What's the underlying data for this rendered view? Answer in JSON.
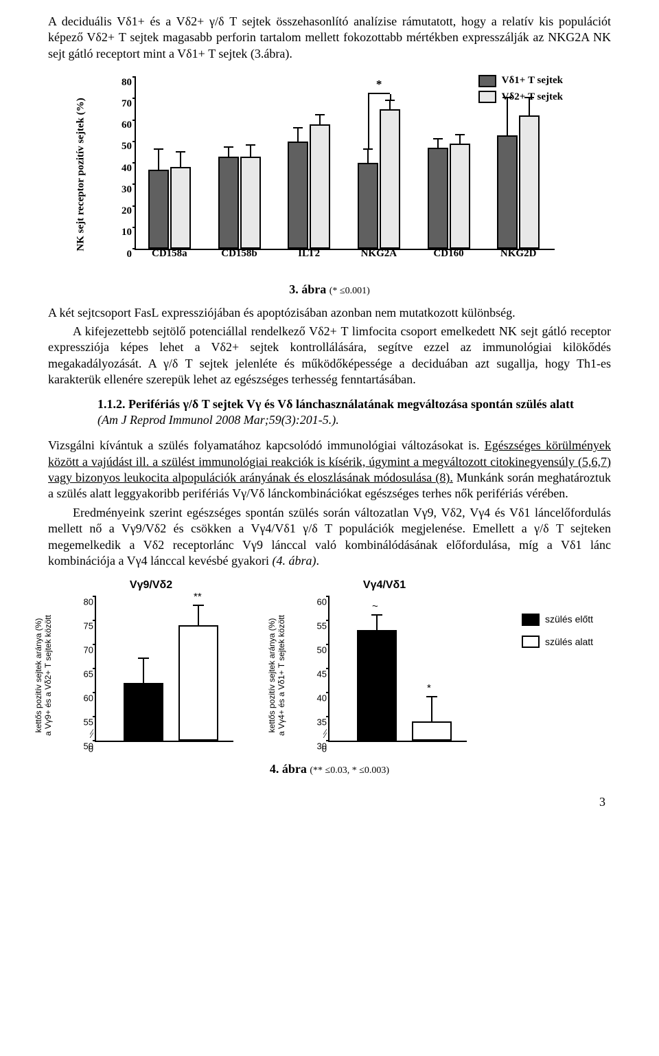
{
  "paragraphs": {
    "p1": "A deciduális Vδ1+ és a Vδ2+ γ/δ T sejtek összehasonlító analízise rámutatott, hogy a relatív kis populációt képező Vδ2+ T sejtek magasabb perforin tartalom mellett fokozottabb mértékben expresszálják az NKG2A NK sejt gátló receptort mint a Vδ1+ T sejtek (3.ábra).",
    "p2a": "A két sejtcsoport FasL expressziójában és apoptózisában azonban nem mutatkozott különbség.",
    "p2b": "A kifejezettebb sejtölő potenciállal rendelkező Vδ2+ T limfocita csoport emelkedett NK sejt gátló receptor expressziója képes lehet a Vδ2+ sejtek kontrollálására, segítve ezzel az immunológiai kilökődés megakadályozását. A γ/δ T sejtek jelenléte és működőképessége a deciduában azt sugallja, hogy Th1-es karakterük ellenére szerepük lehet az egészséges terhesség fenntartásában.",
    "p3": "Vizsgálni kívántuk a szülés folyamatához kapcsolódó immunológiai változásokat is. Egészséges körülmények között a vajúdást ill. a szülést immunológiai reakciók is kísérik, úgymint a megváltozott citokinegyensúly (5,6,7) vagy bizonyos leukocita alpopulációk arányának és eloszlásának módosulása (8). Munkánk során meghatároztuk a szülés alatt leggyakoribb perifériás Vγ/Vδ lánckombinációkat egészséges terhes nők perifériás vérében.",
    "p4": "Eredményeink szerint egészséges spontán szülés során változatlan Vγ9, Vδ2, Vγ4 és Vδ1 láncelőfordulás mellett nő a Vγ9/Vδ2 és csökken a Vγ4/Vδ1 γ/δ T populációk megjelenése. Emellett a γ/δ T sejteken megemelkedik a Vδ2 receptorlánc Vγ9 lánccal való kombinálódásának előfordulása, míg a Vδ1 lánc kombinációja a Vγ4 lánccal kevésbé gyakori (4. ábra)."
  },
  "section": {
    "number": "1.1.2.",
    "title": "Perifériás γ/δ T sejtek Vγ és Vδ lánchasználatának megváltozása spontán szülés alatt",
    "ref": "(Am J Reprod Immunol 2008 Mar;59(3):201-5.)."
  },
  "fig3": {
    "caption_bold": "3. ábra",
    "caption_small": "(* ≤0.001)",
    "type": "bar",
    "ylabel": "NK sejt receptor pozitív sejtek (%)",
    "ylim": [
      0,
      80
    ],
    "ytick_step": 10,
    "categories": [
      "CD158a",
      "CD158b",
      "ILT2",
      "NKG2A",
      "CD160",
      "NKG2D"
    ],
    "series": [
      {
        "name": "Vδ1+ T sejtek",
        "color": "#606060"
      },
      {
        "name": "Vδ2+ T sejtek",
        "color": "#e8e8e8"
      }
    ],
    "values": {
      "CD158a": {
        "vd1": 37,
        "vd2": 38,
        "vd1_err": 9,
        "vd2_err": 7
      },
      "CD158b": {
        "vd1": 43,
        "vd2": 43,
        "vd1_err": 4,
        "vd2_err": 5
      },
      "ILT2": {
        "vd1": 50,
        "vd2": 58,
        "vd1_err": 6,
        "vd2_err": 4
      },
      "NKG2A": {
        "vd1": 40,
        "vd2": 65,
        "vd1_err": 6,
        "vd2_err": 4,
        "sig": "*"
      },
      "CD160": {
        "vd1": 47,
        "vd2": 49,
        "vd1_err": 4,
        "vd2_err": 4
      },
      "NKG2D": {
        "vd1": 53,
        "vd2": 62,
        "vd1_err": 17,
        "vd2_err": 8
      }
    },
    "bar_border_color": "#000000",
    "background_color": "#ffffff"
  },
  "fig4": {
    "caption_bold": "4. ábra",
    "caption_small": "(** ≤0.03, * ≤0.003)",
    "type": "bar",
    "legend": [
      {
        "label": "szülés előtt",
        "color": "#000000"
      },
      {
        "label": "szülés alatt",
        "color": "#ffffff"
      }
    ],
    "panels": [
      {
        "title": "Vγ9/Vδ2",
        "ylabel_line1": "kettős pozitív sejtek aránya (%)",
        "ylabel_line2": "a Vγ9+ és a Vδ2+ T sejtek között",
        "ylim": [
          50,
          80
        ],
        "yticks": [
          50,
          55,
          60,
          65,
          70,
          75,
          80
        ],
        "axis_break_at": 0,
        "bars": [
          {
            "label": "before",
            "value": 62,
            "err": 5,
            "color": "#000000"
          },
          {
            "label": "after",
            "value": 74,
            "err": 4,
            "color": "#ffffff",
            "sig": "**"
          }
        ]
      },
      {
        "title": "Vγ4/Vδ1",
        "ylabel_line1": "kettős pozitív sejtek aránya (%)",
        "ylabel_line2": "a Vγ4+ és a Vδ1+ T sejtek között",
        "ylim": [
          30,
          60
        ],
        "yticks": [
          30,
          35,
          40,
          45,
          50,
          55,
          60
        ],
        "axis_break_at": 0,
        "bars": [
          {
            "label": "before",
            "value": 53,
            "err": 3,
            "color": "#000000",
            "sig": "~"
          },
          {
            "label": "after",
            "value": 34,
            "err": 5,
            "color": "#ffffff",
            "sig": "*"
          }
        ]
      }
    ]
  },
  "page_number": "3"
}
